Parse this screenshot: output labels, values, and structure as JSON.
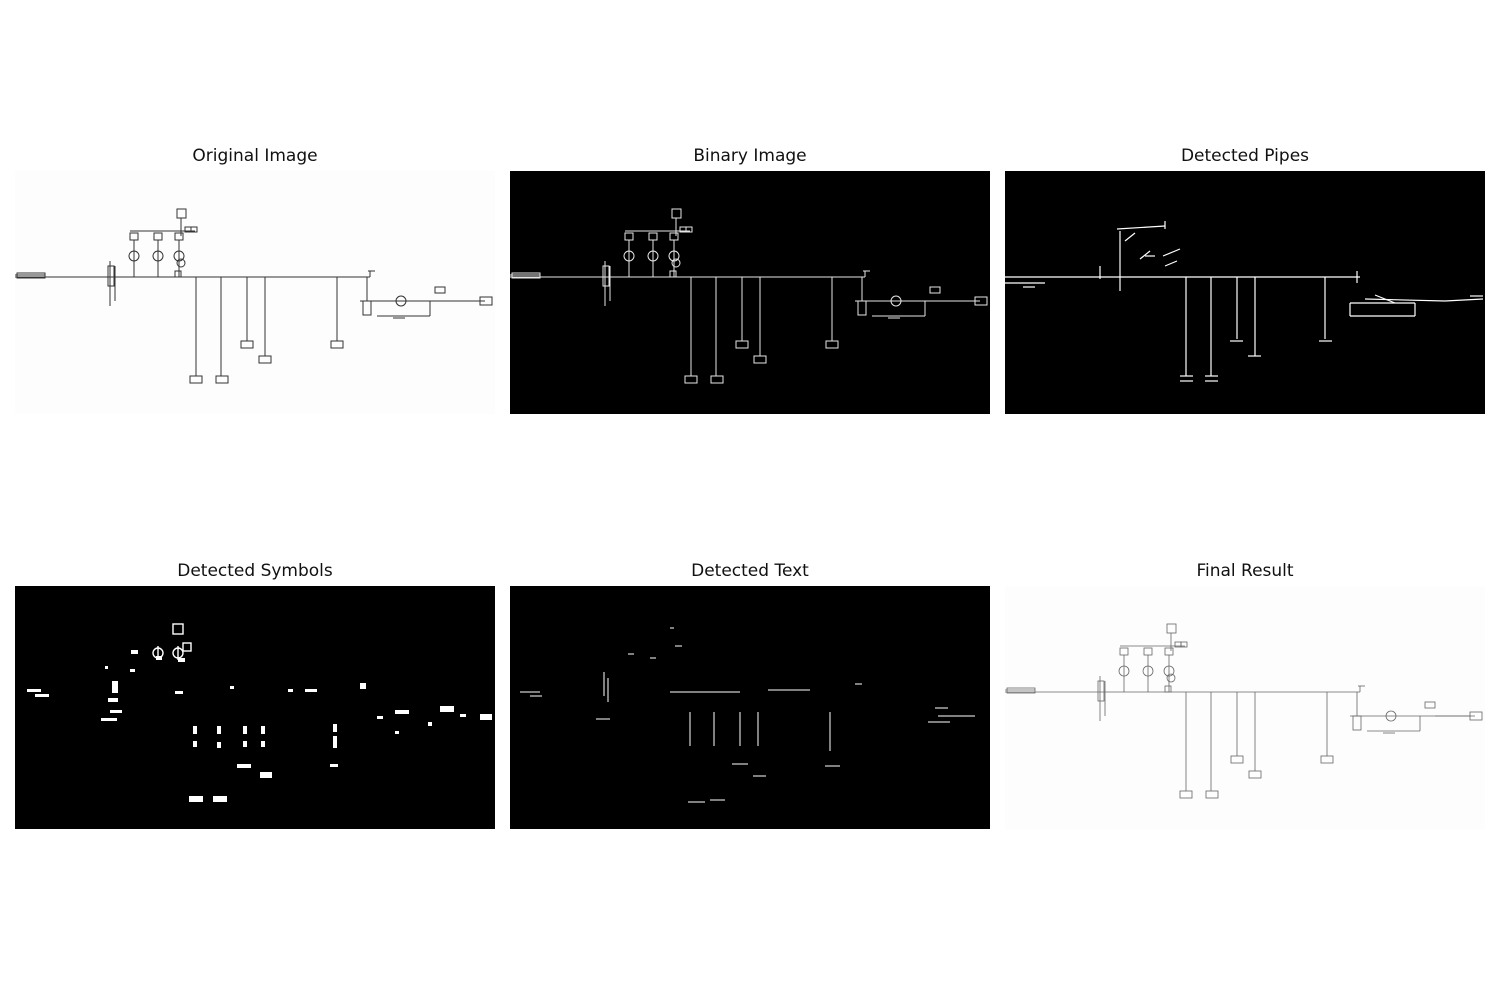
{
  "figure": {
    "panels": [
      {
        "title": "Original Image",
        "style": "light",
        "stroke": "#333333"
      },
      {
        "title": "Binary Image",
        "style": "dark",
        "stroke": "#e6e6e6"
      },
      {
        "title": "Detected Pipes",
        "style": "dark",
        "stroke": "#ffffff"
      },
      {
        "title": "Detected Symbols",
        "style": "dark",
        "stroke": "#ffffff"
      },
      {
        "title": "Detected Text",
        "style": "dark",
        "stroke": "#ffffff"
      },
      {
        "title": "Final Result",
        "style": "light",
        "stroke": "#666666"
      }
    ]
  },
  "colors": {
    "light_background": "#fdfdfd",
    "dark_background": "#000000",
    "title_text": "#111111"
  }
}
